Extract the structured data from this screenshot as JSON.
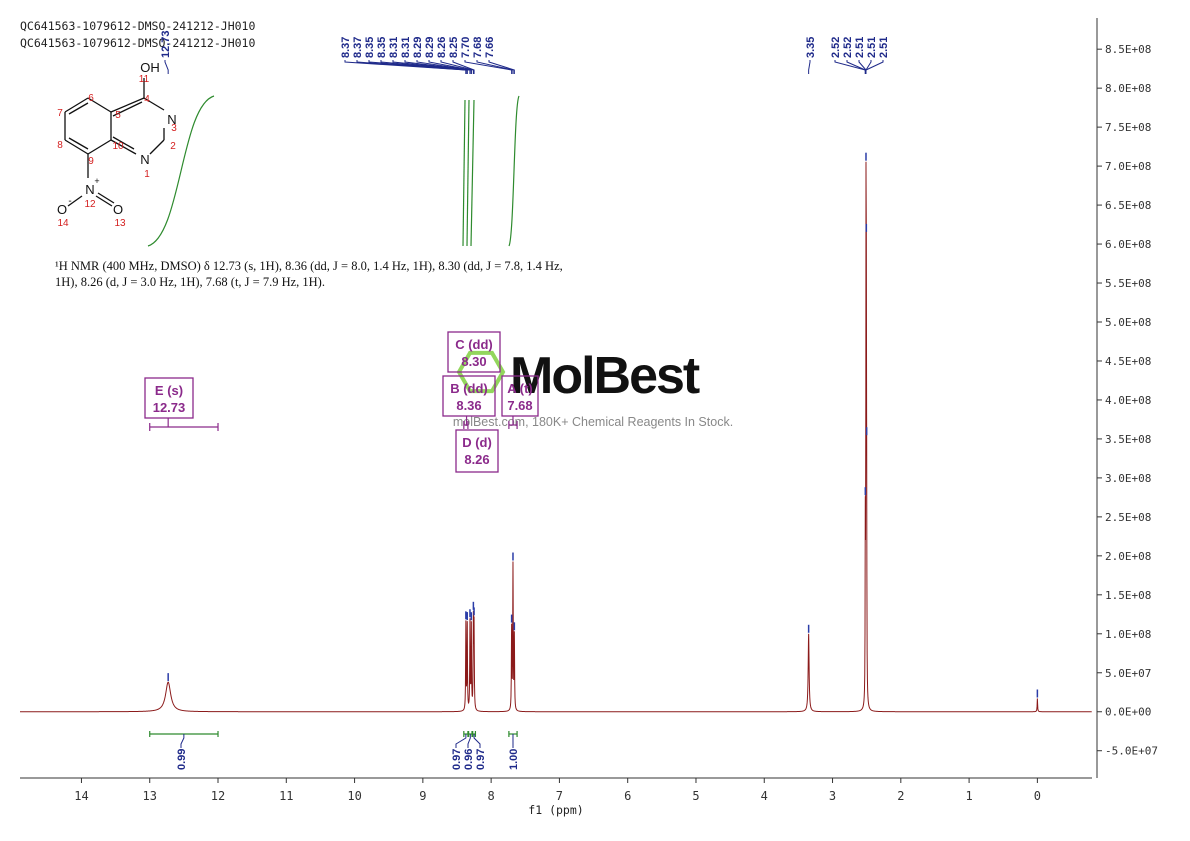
{
  "chart_data": {
    "type": "line",
    "header_lines": [
      "QC641563-1079612-DMSO-241212-JH010",
      "QC641563-1079612-DMSO-241212-JH010"
    ],
    "xlabel": "f1 (ppm)",
    "xlim": [
      14.9,
      -0.8
    ],
    "x_reversed": true,
    "x_ticks": [
      14,
      13,
      12,
      11,
      10,
      9,
      8,
      7,
      6,
      5,
      4,
      3,
      2,
      1,
      0
    ],
    "ylim": [
      -85000000.0,
      890000000.0
    ],
    "y_ticks": [
      -50000000.0,
      0,
      50000000.0,
      100000000.0,
      150000000.0,
      200000000.0,
      250000000.0,
      300000000.0,
      350000000.0,
      400000000.0,
      450000000.0,
      500000000.0,
      550000000.0,
      600000000.0,
      650000000.0,
      700000000.0,
      750000000.0,
      800000000.0,
      850000000.0
    ],
    "y_tick_labels": [
      "-5.0E+07",
      "0.0E+00",
      "5.0E+07",
      "1.0E+08",
      "1.5E+08",
      "2.0E+08",
      "2.5E+08",
      "3.0E+08",
      "3.5E+08",
      "4.0E+08",
      "4.5E+08",
      "5.0E+08",
      "5.5E+08",
      "6.0E+08",
      "6.5E+08",
      "7.0E+08",
      "7.5E+08",
      "8.0E+08",
      "8.5E+08"
    ],
    "spectrum_color": "#8b1a1a",
    "integral_color": "#2e8b2e",
    "peak_label_color": "#1f2a8a",
    "multiplet_color": "#8b2a8b",
    "peaks": [
      {
        "ppm": 12.73,
        "height": 38000000.0,
        "width": 0.045
      },
      {
        "ppm": 8.37,
        "height": 112000000.0,
        "width": 0.004
      },
      {
        "ppm": 8.35,
        "height": 110000000.0,
        "width": 0.004
      },
      {
        "ppm": 8.31,
        "height": 113000000.0,
        "width": 0.004
      },
      {
        "ppm": 8.29,
        "height": 108000000.0,
        "width": 0.004
      },
      {
        "ppm": 8.26,
        "height": 112000000.0,
        "width": 0.004
      },
      {
        "ppm": 8.25,
        "height": 105000000.0,
        "width": 0.004
      },
      {
        "ppm": 7.7,
        "height": 105000000.0,
        "width": 0.004
      },
      {
        "ppm": 7.68,
        "height": 185000000.0,
        "width": 0.004
      },
      {
        "ppm": 7.66,
        "height": 95000000.0,
        "width": 0.004
      },
      {
        "ppm": 3.35,
        "height": 100000000.0,
        "width": 0.008
      },
      {
        "ppm": 2.52,
        "height": 210000000.0,
        "width": 0.003
      },
      {
        "ppm": 2.51,
        "height": 565000000.0,
        "width": 0.003
      },
      {
        "ppm": 2.505,
        "height": 405000000.0,
        "width": 0.003
      },
      {
        "ppm": 2.5,
        "height": 195000000.0,
        "width": 0.003
      },
      {
        "ppm": 0.0,
        "height": 17000000.0,
        "width": 0.004
      }
    ],
    "peak_labels": [
      {
        "text": "12.73",
        "ppm": 12.73
      },
      {
        "text": "8.37",
        "ppm": 8.37
      },
      {
        "text": "8.37",
        "ppm": 8.37
      },
      {
        "text": "8.35",
        "ppm": 8.35
      },
      {
        "text": "8.35",
        "ppm": 8.35
      },
      {
        "text": "8.31",
        "ppm": 8.31
      },
      {
        "text": "8.31",
        "ppm": 8.31
      },
      {
        "text": "8.29",
        "ppm": 8.29
      },
      {
        "text": "8.29",
        "ppm": 8.29
      },
      {
        "text": "8.26",
        "ppm": 8.26
      },
      {
        "text": "8.25",
        "ppm": 8.25
      },
      {
        "text": "7.70",
        "ppm": 7.7
      },
      {
        "text": "7.68",
        "ppm": 7.68
      },
      {
        "text": "7.66",
        "ppm": 7.66
      },
      {
        "text": "3.35",
        "ppm": 3.35
      },
      {
        "text": "2.52",
        "ppm": 2.52
      },
      {
        "text": "2.52",
        "ppm": 2.52
      },
      {
        "text": "2.51",
        "ppm": 2.51
      },
      {
        "text": "2.51",
        "ppm": 2.51
      },
      {
        "text": "2.51",
        "ppm": 2.51
      }
    ],
    "integrals": [
      {
        "from": 13.0,
        "to": 12.0,
        "value": "0.99"
      },
      {
        "from": 8.4,
        "to": 8.34,
        "value": "0.97"
      },
      {
        "from": 8.33,
        "to": 8.28,
        "value": "0.96"
      },
      {
        "from": 8.27,
        "to": 8.23,
        "value": "0.97"
      },
      {
        "from": 7.74,
        "to": 7.62,
        "value": "1.00"
      }
    ],
    "multiplets": [
      {
        "label": "E (s)",
        "shift": "12.73",
        "ppm": 12.73,
        "from": 13.0,
        "to": 12.0
      },
      {
        "label": "C (dd)",
        "shift": "8.30",
        "ppm": 8.3,
        "from": 8.33,
        "to": 8.28
      },
      {
        "label": "B (dd)",
        "shift": "8.36",
        "ppm": 8.36,
        "from": 8.4,
        "to": 8.34
      },
      {
        "label": "A (t)",
        "shift": "7.68",
        "ppm": 7.68,
        "from": 7.74,
        "to": 7.62
      },
      {
        "label": "D (d)",
        "shift": "8.26",
        "ppm": 8.26,
        "from": 8.27,
        "to": 8.23
      }
    ],
    "nmr_description": [
      "¹H NMR (400 MHz, DMSO) δ 12.73 (s, 1H), 8.36 (dd, J = 8.0, 1.4 Hz, 1H), 8.30 (dd, J = 7.8, 1.4 Hz,",
      "1H), 8.26 (d, J = 3.0 Hz, 1H), 7.68 (t, J = 7.9 Hz, 1H)."
    ],
    "structure": {
      "atoms": [
        "OH",
        "N",
        "N",
        "N",
        "O",
        "O",
        "+",
        "-"
      ],
      "numbers": [
        "1",
        "2",
        "3",
        "4",
        "5",
        "6",
        "7",
        "8",
        "9",
        "10",
        "11",
        "12",
        "13",
        "14"
      ]
    },
    "watermark": {
      "brand": "MolBest",
      "tagline": "molBest.com, 180K+ Chemical Reagents In Stock."
    }
  }
}
